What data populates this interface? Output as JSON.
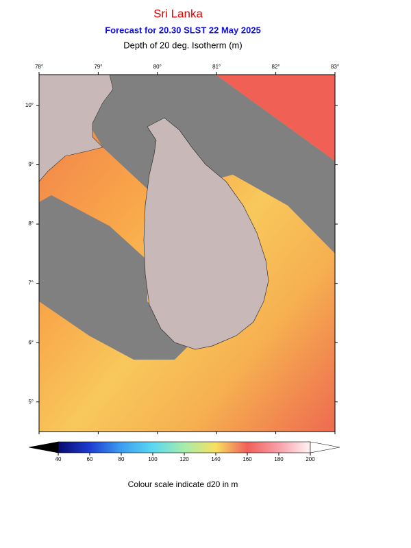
{
  "header": {
    "title": "Sri Lanka",
    "subtitle": "Forecast for  20.30 SLST 22 May 2025",
    "variable": "Depth of 20 deg. Isotherm (m)"
  },
  "map": {
    "lon_range": [
      78,
      83
    ],
    "lat_range": [
      4.5,
      10.52
    ],
    "lon_ticks": [
      {
        "value": 78,
        "label": "78°"
      },
      {
        "value": 79,
        "label": "79°"
      },
      {
        "value": 80,
        "label": "80°"
      },
      {
        "value": 81,
        "label": "81°"
      },
      {
        "value": 82,
        "label": "82°"
      },
      {
        "value": 83,
        "label": "83°"
      }
    ],
    "lat_ticks": [
      {
        "value": 5,
        "label": "5°"
      },
      {
        "value": 6,
        "label": "6°"
      },
      {
        "value": 7,
        "label": "7°"
      },
      {
        "value": 8,
        "label": "8°"
      },
      {
        "value": 9,
        "label": "9°"
      },
      {
        "value": 10,
        "label": "10°"
      }
    ]
  },
  "colorbar": {
    "range": [
      40,
      200
    ],
    "ticks": [
      40,
      60,
      80,
      100,
      120,
      140,
      160,
      180,
      200
    ],
    "caption": "Colour scale indicate d20 in m"
  }
}
